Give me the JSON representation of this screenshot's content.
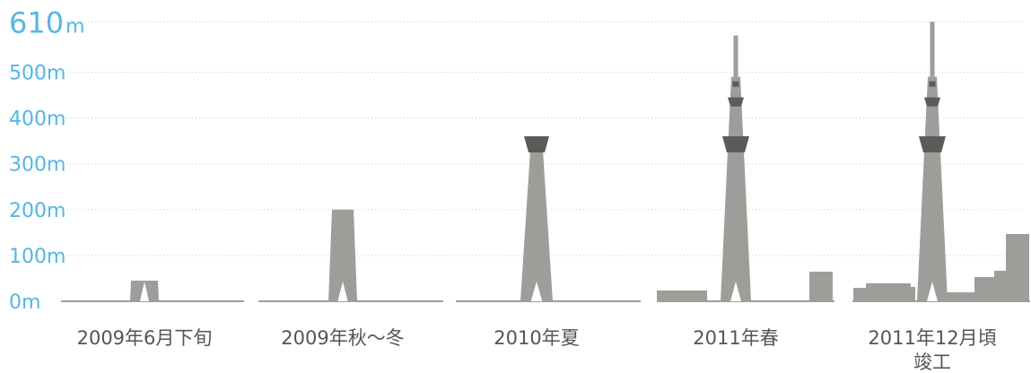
{
  "chart_data": {
    "type": "bar",
    "title": "",
    "xlabel": "",
    "ylabel": "",
    "unit": "m",
    "ylim": [
      0,
      610
    ],
    "yticks": [
      {
        "value": 0,
        "label": "0m"
      },
      {
        "value": 100,
        "label": "100m"
      },
      {
        "value": 200,
        "label": "200m"
      },
      {
        "value": 300,
        "label": "300m"
      },
      {
        "value": 400,
        "label": "400m"
      },
      {
        "value": 500,
        "label": "500m"
      },
      {
        "value": 610,
        "label": "610",
        "unit_label": "m"
      }
    ],
    "grid": true,
    "categories": [
      {
        "label": [
          "2009年6月下旬"
        ]
      },
      {
        "label": [
          "2009年秋〜冬"
        ]
      },
      {
        "label": [
          "2010年夏"
        ]
      },
      {
        "label": [
          "2011年春"
        ]
      },
      {
        "label": [
          "2011年12月頃",
          "竣工"
        ]
      }
    ],
    "values": [
      45,
      200,
      360,
      580,
      610
    ],
    "colors": {
      "tower": "#9d9d9a",
      "tower_dark": "#5b5b59",
      "axis_text": "#56b6e2",
      "grid": "#a9d9ee",
      "label": "#555555"
    }
  }
}
